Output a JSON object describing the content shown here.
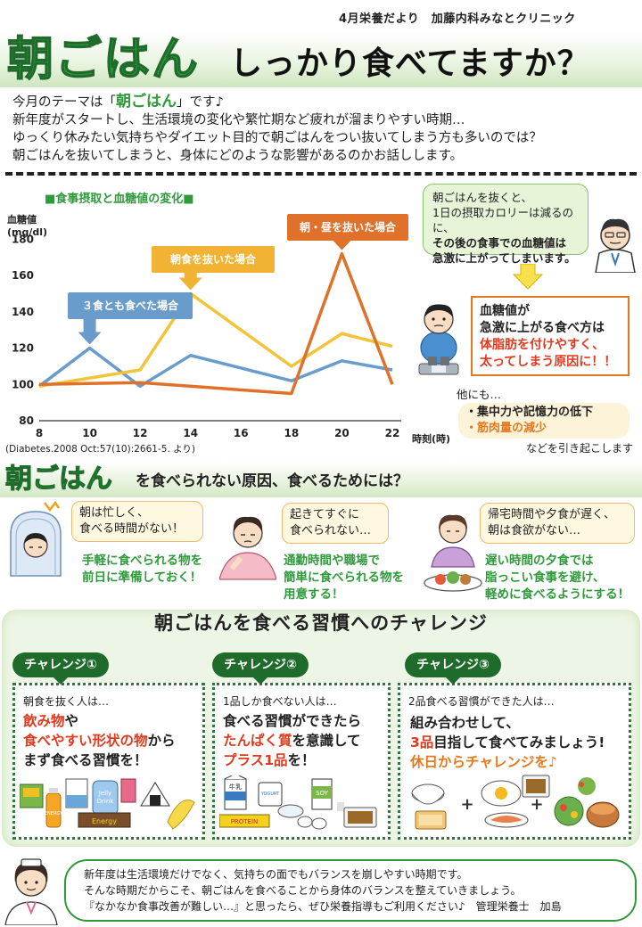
{
  "header": {
    "source": "4月栄養だより　加藤内科みなとクリニック",
    "title_main": "朝ごはん",
    "title_rest": "しっかり食べてますか？"
  },
  "intro": {
    "line1_pre": "今月のテーマは「",
    "line1_em": "朝ごはん",
    "line1_post": "」です♪",
    "line2": "新年度がスタートし、生活環境の変化や繁忙期など疲れが溜まりやすい時期…",
    "line3": "ゆっくり休みたい気持ちやダイエット目的で朝ごはんをつい抜いてしまう方も多いのでは？",
    "line4": "朝ごはんを抜いてしまうと、身体にどのような影響があるのかお話しします。"
  },
  "chart_section": {
    "title": "■食事摂取と血糖値の変化■",
    "citation": "(Diabetes.2008 Oct:57(10):2661-5. より)"
  },
  "chart_data": {
    "type": "line",
    "title": "■食事摂取と血糖値の変化■",
    "ylabel": "血糖値\n(mg/dl)",
    "xlabel": "時刻(時)",
    "ylabel_line1": "血糖値",
    "ylabel_line2": "(mg/dl)",
    "ylim": [
      80,
      190
    ],
    "xlim": [
      8,
      22
    ],
    "y_ticks": [
      "80",
      "100",
      "120",
      "140",
      "160",
      "180"
    ],
    "x_ticks": [
      "8",
      "10",
      "12",
      "14",
      "16",
      "18",
      "20",
      "22"
    ],
    "grid": false,
    "series": [
      {
        "name": "３食とも食べた場合",
        "color": "#6a9ccb",
        "x": [
          8,
          10,
          12,
          14,
          18,
          20,
          22
        ],
        "y": [
          99,
          120,
          99,
          116,
          102,
          113,
          108
        ]
      },
      {
        "name": "朝食を抜いた場合",
        "color": "#f2c43a",
        "x": [
          8,
          12,
          14,
          18,
          20,
          22
        ],
        "y": [
          99,
          108,
          150,
          110,
          128,
          121
        ]
      },
      {
        "name": "朝・昼を抜いた場合",
        "color": "#e0712a",
        "x": [
          8,
          12,
          18,
          20,
          22
        ],
        "y": [
          100,
          101,
          95,
          172,
          100
        ]
      }
    ]
  },
  "speech": {
    "line1": "朝ごはんを抜くと、",
    "line2": "1日の摂取カロリーは減るのに、",
    "line3": "その後の食事での血糖値は",
    "line4": "急激に上がってしまいます。"
  },
  "warning": {
    "line1": "血糖値が",
    "line2": "急激に上がる食べ方は",
    "line3": "体脂肪を付けやすく、",
    "line4": "太ってしまう原因に！！"
  },
  "other": {
    "lead": "他にも…",
    "item1": "・集中力や記憶力の低下",
    "item2": "・筋肉量の減少",
    "tail": "などを引き起こします"
  },
  "reasons": {
    "title_em": "朝ごはん",
    "title_rest": "を食べられない原因、食べるためには？",
    "items": [
      {
        "bubble1": "朝は忙しく、",
        "bubble2": "食べる時間がない！",
        "tip1": "手軽に食べられる物を",
        "tip2": "前日に準備しておく！",
        "tip3": ""
      },
      {
        "bubble1": "起きてすぐに",
        "bubble2": "食べられない…",
        "tip1": "通勤時間や職場で",
        "tip2": "簡単に食べられる物を",
        "tip3": "用意する！"
      },
      {
        "bubble1": "帰宅時間や夕食が遅く、",
        "bubble2": "朝は食欲がない…",
        "tip1": "遅い時間の夕食では",
        "tip2": "脂っこい食事を避け、",
        "tip3": "軽めに食べるようにする！"
      }
    ]
  },
  "challenge": {
    "title": "朝ごはんを食べる習慣へのチャレンジ",
    "cards": [
      {
        "tag": "チャレンジ①",
        "lead": "朝食を抜く人は…",
        "l1a": "飲み物",
        "l1b": "や",
        "l2a": "食べやすい形状の物",
        "l2b": "から",
        "l3": "まず食べる習慣を！"
      },
      {
        "tag": "チャレンジ②",
        "lead": "1品しか食べない人は…",
        "l1a": "食べる習慣ができたら",
        "l1b": "",
        "l2a": "たんぱく質",
        "l2b": "を意識して",
        "l3a": "プラス1品",
        "l3b": "を！"
      },
      {
        "tag": "チャレンジ③",
        "lead": "2品食べる習慣ができた人は…",
        "l1a": "組み合わせして、",
        "l1b": "",
        "l2a": "3品",
        "l2b": "目指して食べてみましょう!",
        "l3": "休日からチャレンジを♪"
      }
    ],
    "food_labels": {
      "energy": "ENERGY",
      "jelly1": "Jelly",
      "jelly2": "Drink",
      "energy_bar": "Energy",
      "milk": "牛乳",
      "yogurt": "YOGURT",
      "soy": "SOY",
      "protein": "PROTEIN"
    }
  },
  "footer": {
    "line1": "新年度は生活環境だけでなく、気持ちの面でもバランスを崩しやすい時期です。",
    "line2": "そんな時期だからこそ、朝ごはんを食べることから身体のバランスを整えていきましょう。",
    "line3": "『なかなか食事改善が難しい…』と思ったら、ぜひ栄養指導もご利用ください♪　管理栄養士　加島"
  },
  "colors": {
    "green": "#2e9a3a",
    "dark_green": "#1f6b2b",
    "orange": "#e8781e",
    "red": "#e23a1e",
    "yellow": "#f2c43a",
    "blue": "#6a9ccb"
  }
}
